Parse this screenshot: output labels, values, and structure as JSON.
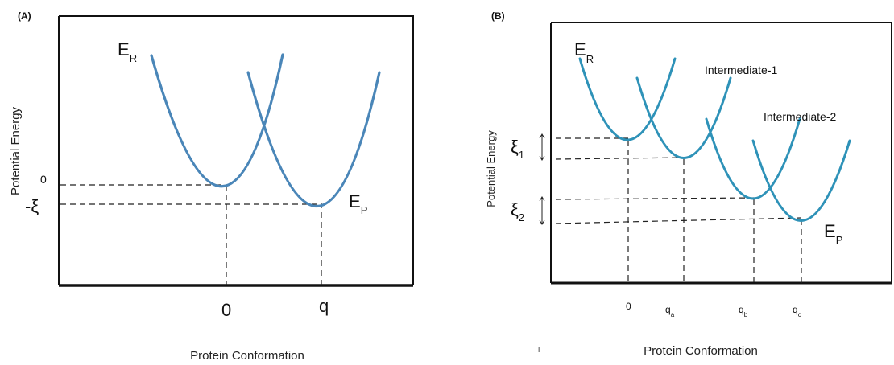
{
  "panel_a": {
    "panel_label": "(A)",
    "y_axis_title": "Potential Energy",
    "x_axis_title": "Protein Conformation",
    "reactant_label": {
      "main": "E",
      "sub": "R"
    },
    "product_label": {
      "main": "E",
      "sub": "P"
    },
    "y_ticks": {
      "zero": "0",
      "minus_xi": "-ξ"
    },
    "x_ticks": {
      "zero": "0",
      "q": "q"
    }
  },
  "panel_b": {
    "panel_label": "(B)",
    "y_axis_title": "Potential Energy",
    "x_axis_title": "Protein Conformation",
    "stray_mark": "I",
    "reactant_label": {
      "main": "E",
      "sub": "R"
    },
    "product_label": {
      "main": "E",
      "sub": "P"
    },
    "intermediate_1": "Intermediate-1",
    "intermediate_2": "Intermediate-2",
    "xi_1": {
      "main": "ξ",
      "sub": "1"
    },
    "xi_2": {
      "main": "ξ",
      "sub": "2"
    },
    "x_ticks": {
      "zero": "0",
      "qa": {
        "main": "q",
        "sub": "a"
      },
      "qb": {
        "main": "q",
        "sub": "b"
      },
      "qc": {
        "main": "q",
        "sub": "c"
      }
    }
  },
  "colors": {
    "curve_a": "#4a86b8",
    "curve_b": "#2e92b8",
    "frame": "#111111",
    "guide_lines": "#222222"
  }
}
